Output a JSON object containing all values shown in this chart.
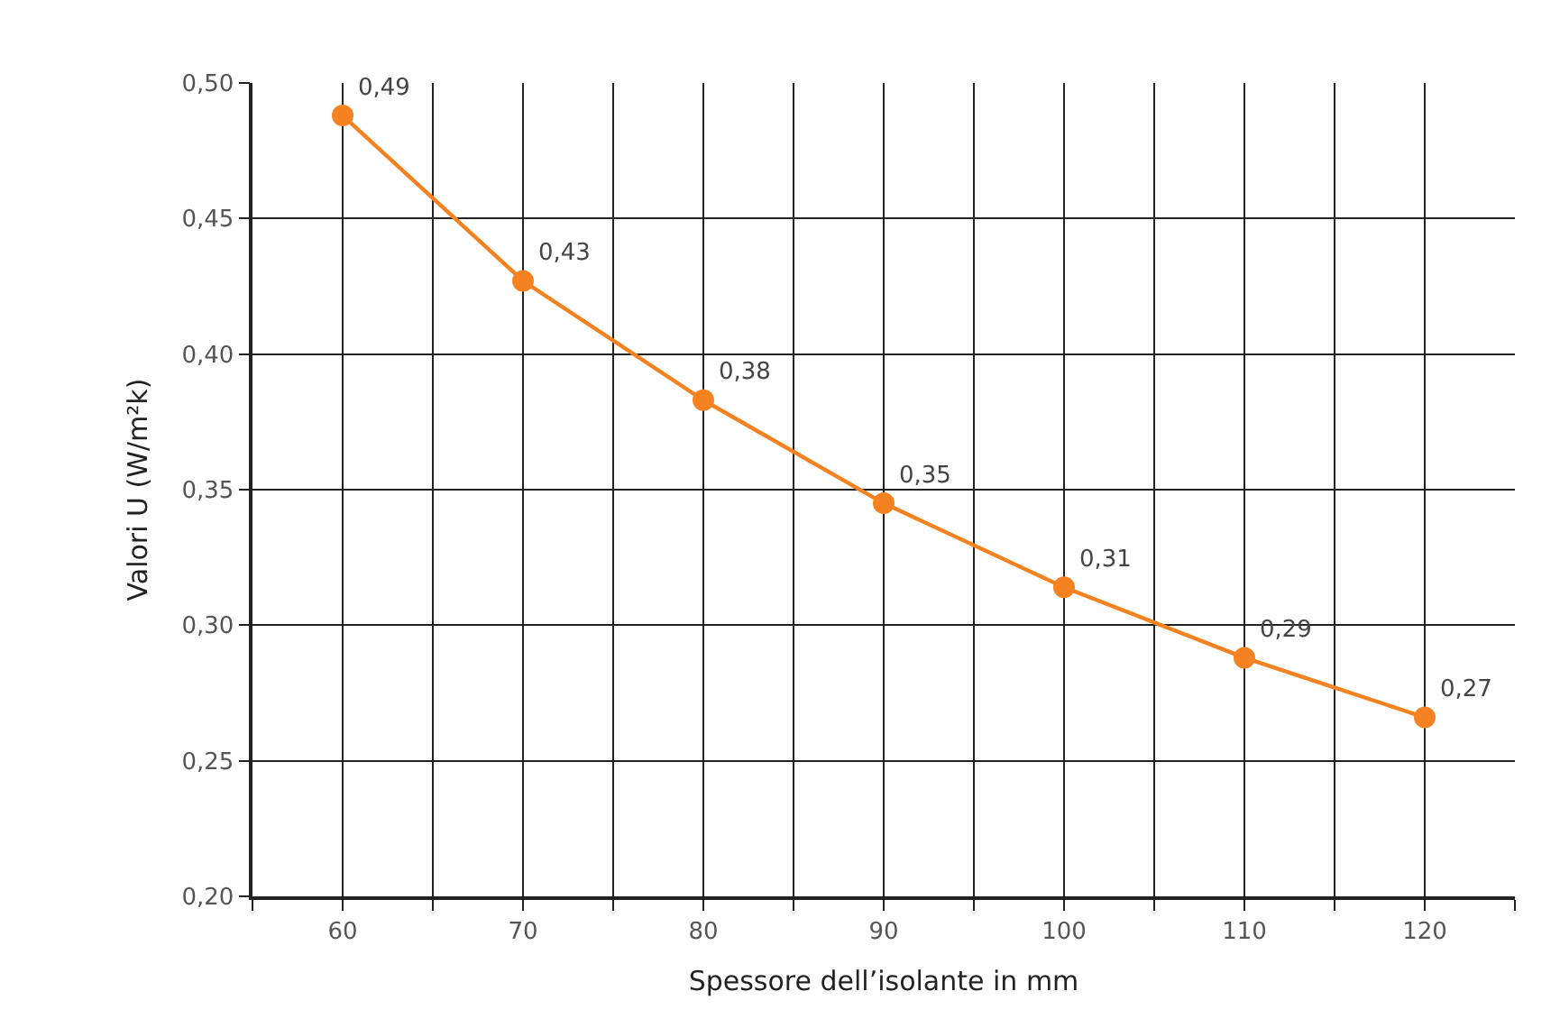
{
  "chart_data": {
    "type": "line",
    "xlabel": "Spessore dell’isolante in mm",
    "ylabel": "Valori U (W/m²k)",
    "x": [
      60,
      70,
      80,
      90,
      100,
      110,
      120
    ],
    "series": [
      {
        "color": "#f58220",
        "values": [
          0.488,
          0.427,
          0.383,
          0.345,
          0.314,
          0.288,
          0.266
        ],
        "value_labels": [
          "0,49",
          "0,43",
          "0,38",
          "0,35",
          "0,31",
          "0,29",
          "0,27"
        ]
      }
    ],
    "xlim": [
      55,
      125
    ],
    "xticks": [
      {
        "value": 55,
        "label": null
      },
      60,
      {
        "value": 65,
        "label": null
      },
      70,
      {
        "value": 75,
        "label": null
      },
      80,
      {
        "value": 85,
        "label": null
      },
      90,
      {
        "value": 95,
        "label": null
      },
      100,
      {
        "value": 105,
        "label": null
      },
      110,
      {
        "value": 115,
        "label": null
      },
      120,
      {
        "value": 125,
        "label": null
      }
    ],
    "ylim": [
      0.2,
      0.5
    ],
    "yticks": [
      {
        "value": 0.2,
        "label": "0,20"
      },
      {
        "value": 0.25,
        "label": "0,25"
      },
      {
        "value": 0.3,
        "label": "0,30"
      },
      {
        "value": 0.35,
        "label": "0,35"
      },
      {
        "value": 0.4,
        "label": "0,40"
      },
      {
        "value": 0.45,
        "label": "0,45"
      },
      {
        "value": 0.5,
        "label": "0,50"
      }
    ],
    "grid": true,
    "marker": "circle",
    "line_style": "solid"
  }
}
